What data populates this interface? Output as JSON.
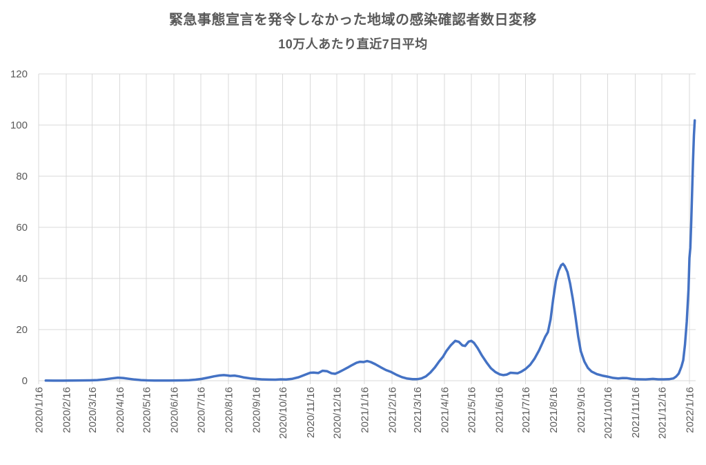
{
  "chart": {
    "title": "緊急事態宣言を発令しなかった地域の感染確認者数日変移",
    "subtitle": "10万人あたり直近7日平均"
  },
  "style": {
    "line_color": "#4472C4",
    "grid_color": "#D9D9D9",
    "axis_color": "#D9D9D9",
    "label_color": "#595959",
    "title_color": "#595959",
    "background": "#FFFFFF"
  },
  "chart_data": {
    "type": "line",
    "title": "緊急事態宣言を発令しなかった地域の感染確認者数日変移",
    "subtitle": "10万人あたり直近7日平均",
    "xlabel": "",
    "ylabel": "",
    "ylim": [
      0,
      120
    ],
    "y_ticks": [
      0,
      20,
      40,
      60,
      80,
      100,
      120
    ],
    "grid": true,
    "legend_position": "none",
    "x_tick_rotation": 90,
    "x_ticks": [
      "2020/1/16",
      "2020/2/16",
      "2020/3/16",
      "2020/4/16",
      "2020/5/16",
      "2020/6/16",
      "2020/7/16",
      "2020/8/16",
      "2020/9/16",
      "2020/10/16",
      "2020/11/16",
      "2020/12/16",
      "2021/1/16",
      "2021/2/16",
      "2021/3/16",
      "2021/4/16",
      "2021/5/16",
      "2021/6/16",
      "2021/7/16",
      "2021/8/16",
      "2021/9/16",
      "2021/10/16",
      "2021/11/16",
      "2021/12/16",
      "2022/1/16"
    ],
    "series": [
      {
        "name": "感染確認者数 10万人あたり直近7日平均",
        "color": "#4472C4",
        "points": [
          [
            "2020/1/24",
            0.05
          ],
          [
            "2020/2/2",
            0.03
          ],
          [
            "2020/2/12",
            0.04
          ],
          [
            "2020/2/22",
            0.06
          ],
          [
            "2020/3/3",
            0.1
          ],
          [
            "2020/3/13",
            0.14
          ],
          [
            "2020/3/22",
            0.25
          ],
          [
            "2020/3/30",
            0.5
          ],
          [
            "2020/4/7",
            0.9
          ],
          [
            "2020/4/14",
            1.2
          ],
          [
            "2020/4/20",
            1.05
          ],
          [
            "2020/4/26",
            0.75
          ],
          [
            "2020/5/3",
            0.45
          ],
          [
            "2020/5/10",
            0.25
          ],
          [
            "2020/5/17",
            0.13
          ],
          [
            "2020/5/25",
            0.08
          ],
          [
            "2020/6/2",
            0.06
          ],
          [
            "2020/6/10",
            0.08
          ],
          [
            "2020/6/18",
            0.1
          ],
          [
            "2020/6/26",
            0.13
          ],
          [
            "2020/7/3",
            0.2
          ],
          [
            "2020/7/10",
            0.4
          ],
          [
            "2020/7/17",
            0.7
          ],
          [
            "2020/7/24",
            1.2
          ],
          [
            "2020/7/31",
            1.7
          ],
          [
            "2020/8/6",
            2.05
          ],
          [
            "2020/8/11",
            2.2
          ],
          [
            "2020/8/15",
            2.05
          ],
          [
            "2020/8/18",
            1.9
          ],
          [
            "2020/8/23",
            2.0
          ],
          [
            "2020/8/28",
            1.7
          ],
          [
            "2020/9/3",
            1.25
          ],
          [
            "2020/9/10",
            0.9
          ],
          [
            "2020/9/16",
            0.7
          ],
          [
            "2020/9/23",
            0.52
          ],
          [
            "2020/10/1",
            0.44
          ],
          [
            "2020/10/8",
            0.4
          ],
          [
            "2020/10/14",
            0.55
          ],
          [
            "2020/10/20",
            0.48
          ],
          [
            "2020/10/27",
            0.75
          ],
          [
            "2020/11/3",
            1.35
          ],
          [
            "2020/11/10",
            2.3
          ],
          [
            "2020/11/16",
            3.1
          ],
          [
            "2020/11/20",
            3.15
          ],
          [
            "2020/11/25",
            3.0
          ],
          [
            "2020/11/30",
            3.9
          ],
          [
            "2020/12/5",
            3.7
          ],
          [
            "2020/12/10",
            2.9
          ],
          [
            "2020/12/14",
            2.7
          ],
          [
            "2020/12/18",
            3.3
          ],
          [
            "2020/12/23",
            4.2
          ],
          [
            "2020/12/28",
            5.1
          ],
          [
            "2021/1/2",
            6.1
          ],
          [
            "2021/1/7",
            7.0
          ],
          [
            "2021/1/11",
            7.4
          ],
          [
            "2021/1/15",
            7.3
          ],
          [
            "2021/1/19",
            7.7
          ],
          [
            "2021/1/23",
            7.3
          ],
          [
            "2021/1/28",
            6.5
          ],
          [
            "2021/2/3",
            5.3
          ],
          [
            "2021/2/9",
            4.2
          ],
          [
            "2021/2/15",
            3.4
          ],
          [
            "2021/2/21",
            2.3
          ],
          [
            "2021/2/27",
            1.4
          ],
          [
            "2021/3/5",
            0.85
          ],
          [
            "2021/3/11",
            0.6
          ],
          [
            "2021/3/16",
            0.6
          ],
          [
            "2021/3/21",
            0.9
          ],
          [
            "2021/3/26",
            1.7
          ],
          [
            "2021/3/31",
            3.2
          ],
          [
            "2021/4/5",
            5.2
          ],
          [
            "2021/4/10",
            7.6
          ],
          [
            "2021/4/14",
            9.3
          ],
          [
            "2021/4/18",
            11.6
          ],
          [
            "2021/4/23",
            13.9
          ],
          [
            "2021/4/28",
            15.6
          ],
          [
            "2021/5/2",
            15.2
          ],
          [
            "2021/5/6",
            13.8
          ],
          [
            "2021/5/9",
            13.6
          ],
          [
            "2021/5/13",
            15.3
          ],
          [
            "2021/5/16",
            15.6
          ],
          [
            "2021/5/19",
            14.8
          ],
          [
            "2021/5/23",
            12.8
          ],
          [
            "2021/5/28",
            9.8
          ],
          [
            "2021/6/2",
            7.2
          ],
          [
            "2021/6/7",
            4.9
          ],
          [
            "2021/6/12",
            3.4
          ],
          [
            "2021/6/17",
            2.5
          ],
          [
            "2021/6/21",
            2.2
          ],
          [
            "2021/6/25",
            2.4
          ],
          [
            "2021/6/29",
            3.1
          ],
          [
            "2021/7/3",
            3.0
          ],
          [
            "2021/7/7",
            2.9
          ],
          [
            "2021/7/11",
            3.5
          ],
          [
            "2021/7/16",
            4.6
          ],
          [
            "2021/7/21",
            6.2
          ],
          [
            "2021/7/26",
            8.6
          ],
          [
            "2021/7/31",
            11.8
          ],
          [
            "2021/8/4",
            14.8
          ],
          [
            "2021/8/7",
            17.2
          ],
          [
            "2021/8/10",
            19.0
          ],
          [
            "2021/8/13",
            24.0
          ],
          [
            "2021/8/16",
            32.0
          ],
          [
            "2021/8/19",
            39.0
          ],
          [
            "2021/8/22",
            43.0
          ],
          [
            "2021/8/25",
            45.2
          ],
          [
            "2021/8/27",
            45.7
          ],
          [
            "2021/8/29",
            44.8
          ],
          [
            "2021/9/1",
            42.5
          ],
          [
            "2021/9/4",
            38.0
          ],
          [
            "2021/9/7",
            32.0
          ],
          [
            "2021/9/10",
            25.0
          ],
          [
            "2021/9/13",
            17.5
          ],
          [
            "2021/9/16",
            11.5
          ],
          [
            "2021/9/20",
            7.5
          ],
          [
            "2021/9/24",
            5.0
          ],
          [
            "2021/9/28",
            3.6
          ],
          [
            "2021/10/4",
            2.6
          ],
          [
            "2021/10/10",
            2.0
          ],
          [
            "2021/10/16",
            1.6
          ],
          [
            "2021/10/22",
            1.1
          ],
          [
            "2021/10/28",
            0.9
          ],
          [
            "2021/11/2",
            1.05
          ],
          [
            "2021/11/7",
            1.0
          ],
          [
            "2021/11/12",
            0.7
          ],
          [
            "2021/11/16",
            0.6
          ],
          [
            "2021/11/22",
            0.55
          ],
          [
            "2021/11/28",
            0.5
          ],
          [
            "2021/12/6",
            0.7
          ],
          [
            "2021/12/12",
            0.55
          ],
          [
            "2021/12/18",
            0.55
          ],
          [
            "2021/12/24",
            0.6
          ],
          [
            "2021/12/29",
            0.9
          ],
          [
            "2022/1/1",
            1.6
          ],
          [
            "2022/1/4",
            2.8
          ],
          [
            "2022/1/7",
            5.5
          ],
          [
            "2022/1/9",
            8.0
          ],
          [
            "2022/1/11",
            14.0
          ],
          [
            "2022/1/13",
            23.0
          ],
          [
            "2022/1/15",
            36.0
          ],
          [
            "2022/1/16",
            48.0
          ],
          [
            "2022/1/17",
            52.0
          ],
          [
            "2022/1/18",
            62.0
          ],
          [
            "2022/1/19",
            74.0
          ],
          [
            "2022/1/20",
            86.0
          ],
          [
            "2022/1/21",
            96.0
          ],
          [
            "2022/1/22",
            101.8
          ]
        ]
      }
    ]
  }
}
